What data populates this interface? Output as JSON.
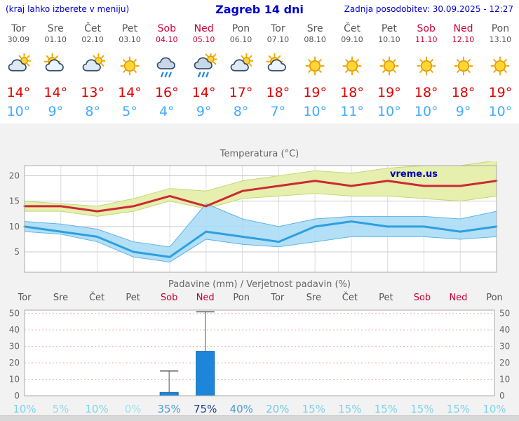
{
  "header": {
    "note": "(kraj lahko izberete v meniju)",
    "title": "Zagreb 14 dni",
    "updated": "Zadnja posodobitev: 30.09.2025 - 12:27"
  },
  "colors": {
    "header_blue": "#0000cc",
    "weekday_text": "#555555",
    "weekend_text": "#cc0033",
    "tmax_red": "#e00000",
    "tmin_blue": "#44aaff",
    "bar_blue": "#1e86d8"
  },
  "days": [
    {
      "name": "Tor",
      "date": "30.09",
      "weekend": false,
      "icon": "cloud-sun",
      "tmax": "14°",
      "tmin": "10°"
    },
    {
      "name": "Sre",
      "date": "01.10",
      "weekend": false,
      "icon": "sun-cloud",
      "tmax": "14°",
      "tmin": "9°"
    },
    {
      "name": "Čet",
      "date": "02.10",
      "weekend": false,
      "icon": "cloud-sun",
      "tmax": "13°",
      "tmin": "8°"
    },
    {
      "name": "Pet",
      "date": "03.10",
      "weekend": false,
      "icon": "sunny",
      "tmax": "14°",
      "tmin": "5°"
    },
    {
      "name": "Sob",
      "date": "04.10",
      "weekend": true,
      "icon": "rain",
      "tmax": "16°",
      "tmin": "4°"
    },
    {
      "name": "Ned",
      "date": "05.10",
      "weekend": true,
      "icon": "rain-sun",
      "tmax": "14°",
      "tmin": "9°"
    },
    {
      "name": "Pon",
      "date": "06.10",
      "weekend": false,
      "icon": "cloud-sun",
      "tmax": "17°",
      "tmin": "8°"
    },
    {
      "name": "Tor",
      "date": "07.10",
      "weekend": false,
      "icon": "sun-cloud",
      "tmax": "18°",
      "tmin": "7°"
    },
    {
      "name": "Sre",
      "date": "08.10",
      "weekend": false,
      "icon": "sunny",
      "tmax": "19°",
      "tmin": "10°"
    },
    {
      "name": "Čet",
      "date": "09.10",
      "weekend": false,
      "icon": "sunny",
      "tmax": "18°",
      "tmin": "11°"
    },
    {
      "name": "Pet",
      "date": "10.10",
      "weekend": false,
      "icon": "sunny",
      "tmax": "19°",
      "tmin": "10°"
    },
    {
      "name": "Sob",
      "date": "11.10",
      "weekend": true,
      "icon": "sunny",
      "tmax": "18°",
      "tmin": "10°"
    },
    {
      "name": "Ned",
      "date": "12.10",
      "weekend": true,
      "icon": "sunny",
      "tmax": "18°",
      "tmin": "9°"
    },
    {
      "name": "Pon",
      "date": "13.10",
      "weekend": false,
      "icon": "sunny",
      "tmax": "19°",
      "tmin": "10°"
    }
  ],
  "chart_data": [
    {
      "type": "line",
      "title": "Temperatura (°C)",
      "watermark": "vreme.us",
      "x_categories": [
        "Tor 30.09",
        "Sre 01.10",
        "Čet 02.10",
        "Pet 03.10",
        "Sob 04.10",
        "Ned 05.10",
        "Pon 06.10",
        "Tor 07.10",
        "Sre 08.10",
        "Čet 09.10",
        "Pet 10.10",
        "Sob 11.10",
        "Ned 12.10",
        "Pon 13.10"
      ],
      "yticks": [
        5,
        10,
        15,
        20
      ],
      "ylim": [
        1,
        22
      ],
      "grid": true,
      "series": [
        {
          "name": "tmax",
          "color": "#cc2936",
          "values": [
            14,
            14,
            13,
            14,
            16,
            14,
            17,
            18,
            19,
            18,
            19,
            18,
            18,
            19
          ]
        },
        {
          "name": "tmin",
          "color": "#2d9fe0",
          "values": [
            10,
            9,
            8,
            5,
            4,
            9,
            8,
            7,
            10,
            11,
            10,
            10,
            9,
            10
          ]
        }
      ],
      "bands": [
        {
          "name": "tmax-range",
          "color": "#e6efad",
          "edge": "#c3d878",
          "upper": [
            15,
            14.5,
            14,
            15.5,
            17.5,
            17,
            19,
            20,
            21,
            20.5,
            21.5,
            22,
            22,
            23
          ],
          "lower": [
            13,
            13,
            12,
            13,
            15,
            13.5,
            15.5,
            16,
            16.5,
            16,
            16,
            15.5,
            15,
            16
          ]
        },
        {
          "name": "tmin-range",
          "color": "#a6daf5",
          "edge": "#5fb4e6",
          "upper": [
            11,
            10.5,
            9.5,
            7,
            6,
            14.5,
            11.5,
            10,
            11.5,
            12,
            12,
            12,
            11.5,
            13
          ],
          "lower": [
            9,
            8.5,
            7,
            4,
            3,
            7.5,
            6.5,
            6,
            7,
            8,
            8,
            8,
            7.5,
            8
          ]
        }
      ]
    },
    {
      "type": "bar",
      "title": "Padavine (mm) / Verjetnost padavin (%)",
      "categories": [
        "Tor",
        "Sre",
        "Čet",
        "Pet",
        "Sob",
        "Ned",
        "Pon",
        "Tor",
        "Sre",
        "Čet",
        "Pet",
        "Sob",
        "Ned",
        "Pon"
      ],
      "weekend_flags": [
        false,
        false,
        false,
        false,
        true,
        true,
        false,
        false,
        false,
        false,
        false,
        true,
        true,
        false
      ],
      "yticks": [
        0,
        10,
        20,
        30,
        40,
        50
      ],
      "ylim": [
        0,
        52
      ],
      "values": [
        0,
        0,
        0,
        0,
        2,
        27,
        0,
        0,
        0,
        0,
        0,
        0,
        0,
        0
      ],
      "whisker_max": [
        0,
        0,
        0,
        0,
        15,
        51,
        0,
        0,
        0,
        0,
        0,
        0,
        0,
        0
      ],
      "bar_color": "#1e86d8",
      "probabilities": [
        {
          "label": "10%",
          "color": "#7fd4ea"
        },
        {
          "label": "5%",
          "color": "#8edcee"
        },
        {
          "label": "10%",
          "color": "#7fd4ea"
        },
        {
          "label": "0%",
          "color": "#9ae2f2"
        },
        {
          "label": "35%",
          "color": "#4e9ed2"
        },
        {
          "label": "75%",
          "color": "#1d3f96"
        },
        {
          "label": "40%",
          "color": "#479bd0"
        },
        {
          "label": "20%",
          "color": "#6fc8e6"
        },
        {
          "label": "15%",
          "color": "#7bd2ea"
        },
        {
          "label": "15%",
          "color": "#7bd2ea"
        },
        {
          "label": "15%",
          "color": "#7bd2ea"
        },
        {
          "label": "15%",
          "color": "#7bd2ea"
        },
        {
          "label": "15%",
          "color": "#7bd2ea"
        },
        {
          "label": "10%",
          "color": "#7fd4ea"
        }
      ]
    }
  ]
}
